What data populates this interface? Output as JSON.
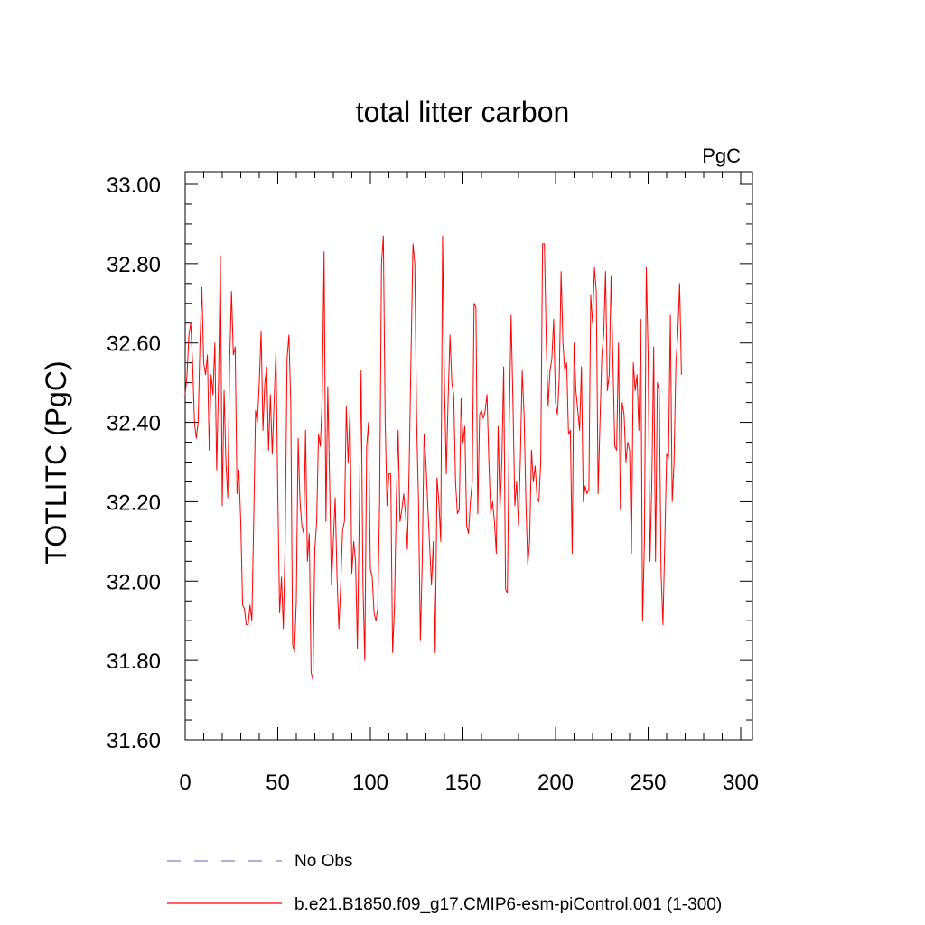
{
  "chart_data": {
    "type": "line",
    "title": "total litter carbon",
    "units_label": "PgC",
    "xlabel": "",
    "ylabel": "TOTLITC  (PgC)",
    "xlim": [
      0,
      300
    ],
    "ylim": [
      31.6,
      33.0
    ],
    "x_ticks": [
      0,
      50,
      100,
      150,
      200,
      250,
      300
    ],
    "x_tick_labels": [
      "0",
      "50",
      "100",
      "150",
      "200",
      "250",
      "300"
    ],
    "y_ticks": [
      31.6,
      31.8,
      32.0,
      32.2,
      32.4,
      32.6,
      32.8,
      33.0
    ],
    "y_tick_labels": [
      "31.60",
      "31.80",
      "32.00",
      "32.20",
      "32.40",
      "32.60",
      "32.80",
      "33.00"
    ],
    "grid": false,
    "legend_placement": "bottom-left, below plot",
    "series": [
      {
        "name": "No Obs",
        "color": "#8080c0",
        "style": "dashed",
        "values": []
      },
      {
        "name": "b.e21.B1850.f09_g17.CMIP6-esm-piControl.001 (1-300)",
        "color": "#ff0000",
        "style": "solid",
        "x_start": 0,
        "x_step": 1,
        "values": [
          32.47,
          32.52,
          32.62,
          32.65,
          32.55,
          32.4,
          32.36,
          32.4,
          32.6,
          32.74,
          32.55,
          32.52,
          32.57,
          32.33,
          32.52,
          32.47,
          32.6,
          32.28,
          32.5,
          32.82,
          32.19,
          32.48,
          32.3,
          32.21,
          32.55,
          32.73,
          32.57,
          32.59,
          32.22,
          32.28,
          32.15,
          31.94,
          31.93,
          31.89,
          31.89,
          31.94,
          31.9,
          32.15,
          32.43,
          32.4,
          32.5,
          32.63,
          32.38,
          32.5,
          32.54,
          32.33,
          32.47,
          32.32,
          32.45,
          32.58,
          32.22,
          31.92,
          32.01,
          31.88,
          32.1,
          32.56,
          32.62,
          32.45,
          31.84,
          31.82,
          31.95,
          32.36,
          32.2,
          32.14,
          32.12,
          32.38,
          32.05,
          32.12,
          31.77,
          31.75,
          32.08,
          32.15,
          32.37,
          32.34,
          32.46,
          32.83,
          32.15,
          32.49,
          32.25,
          31.99,
          32.1,
          32.21,
          32.01,
          31.88,
          31.99,
          32.13,
          32.15,
          32.44,
          32.3,
          32.43,
          32.02,
          32.1,
          32.05,
          31.83,
          32.16,
          32.53,
          31.99,
          31.8,
          32.34,
          32.4,
          32.03,
          32.01,
          31.92,
          31.9,
          31.93,
          32.2,
          32.8,
          32.87,
          32.4,
          32.19,
          32.27,
          32.27,
          31.82,
          31.93,
          32.2,
          32.38,
          32.15,
          32.18,
          32.22,
          32.17,
          32.08,
          32.3,
          32.58,
          32.85,
          32.8,
          32.4,
          32.2,
          31.85,
          32.05,
          32.37,
          32.3,
          32.19,
          32.09,
          31.99,
          32.1,
          31.82,
          32.26,
          32.2,
          32.1,
          32.87,
          32.5,
          32.27,
          32.46,
          32.62,
          32.5,
          32.47,
          32.25,
          32.17,
          32.18,
          32.46,
          32.35,
          32.39,
          32.14,
          32.12,
          32.2,
          32.25,
          32.7,
          32.69,
          32.17,
          32.42,
          32.43,
          32.41,
          32.43,
          32.47,
          32.3,
          32.17,
          32.2,
          32.15,
          32.07,
          32.39,
          32.18,
          32.3,
          32.54,
          31.98,
          31.97,
          32.4,
          32.67,
          32.45,
          32.19,
          32.25,
          32.14,
          32.31,
          32.53,
          32.42,
          32.2,
          32.04,
          32.1,
          32.33,
          32.25,
          32.29,
          32.21,
          32.2,
          32.3,
          32.85,
          32.85,
          32.6,
          32.44,
          32.53,
          32.56,
          32.66,
          32.45,
          32.42,
          32.51,
          32.78,
          32.6,
          32.53,
          32.55,
          32.37,
          32.38,
          32.07,
          32.6,
          32.48,
          32.43,
          32.38,
          32.54,
          32.2,
          32.24,
          32.22,
          32.23,
          32.72,
          32.65,
          32.79,
          32.73,
          32.22,
          32.4,
          32.57,
          32.62,
          32.78,
          32.48,
          32.52,
          32.77,
          32.55,
          32.34,
          32.33,
          32.6,
          32.18,
          32.45,
          32.42,
          32.3,
          32.35,
          32.33,
          32.07,
          32.55,
          32.48,
          32.52,
          32.38,
          32.66,
          31.9,
          32.1,
          32.79,
          32.57,
          32.05,
          32.25,
          32.59,
          32.05,
          32.5,
          32.48,
          32.02,
          31.89,
          32.1,
          32.32,
          32.31,
          32.67,
          32.2,
          32.3,
          32.55,
          32.62,
          32.75,
          32.52
        ]
      }
    ]
  }
}
